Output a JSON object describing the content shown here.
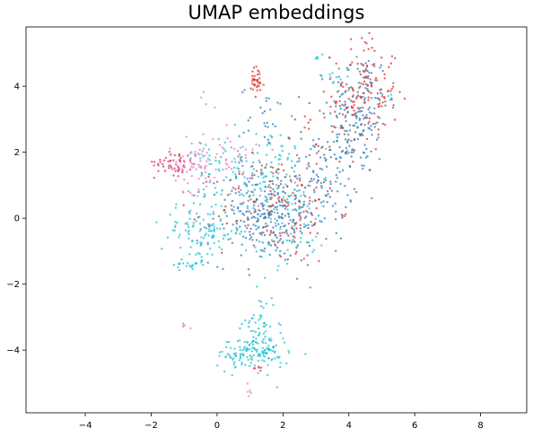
{
  "chart_data": {
    "type": "scatter",
    "title": "UMAP embeddings",
    "xlabel": "",
    "ylabel": "",
    "xlim": [
      -5.8,
      9.4
    ],
    "ylim": [
      -5.9,
      5.8
    ],
    "xticks": [
      -4,
      -2,
      0,
      2,
      4,
      6,
      8
    ],
    "yticks": [
      -4,
      -2,
      0,
      2,
      4
    ],
    "grid": false,
    "legend": "none",
    "point_alpha": 0.7,
    "colors": {
      "cyan": "#17becf",
      "blue": "#1f77b4",
      "red": "#d62728",
      "pink": "#e377c2",
      "crimson": "#e0245e",
      "brown": "#8c564b",
      "purple": "#9467bd"
    },
    "clusters": [
      {
        "color": "cyan",
        "cx": 3.0,
        "cy": 4.9,
        "sx": 0.15,
        "sy": 0.05,
        "n": 6
      },
      {
        "color": "cyan",
        "cx": 3.6,
        "cy": 4.2,
        "sx": 0.3,
        "sy": 0.2,
        "n": 12
      },
      {
        "color": "cyan",
        "cx": 5.2,
        "cy": 3.7,
        "sx": 0.1,
        "sy": 0.15,
        "n": 6
      },
      {
        "color": "blue",
        "cx": 4.3,
        "cy": 3.2,
        "sx": 0.45,
        "sy": 1.0,
        "n": 170
      },
      {
        "color": "red",
        "cx": 4.5,
        "cy": 3.8,
        "sx": 0.5,
        "sy": 0.9,
        "n": 140
      },
      {
        "color": "blue",
        "cx": 3.3,
        "cy": 1.4,
        "sx": 0.5,
        "sy": 0.7,
        "n": 90
      },
      {
        "color": "red",
        "cx": 3.0,
        "cy": 1.8,
        "sx": 0.5,
        "sy": 0.8,
        "n": 45
      },
      {
        "color": "red",
        "cx": 1.2,
        "cy": 4.1,
        "sx": 0.12,
        "sy": 0.25,
        "n": 35
      },
      {
        "color": "blue",
        "cx": 1.5,
        "cy": 3.0,
        "sx": 0.4,
        "sy": 0.5,
        "n": 30
      },
      {
        "color": "cyan",
        "cx": 1.5,
        "cy": 1.3,
        "sx": 0.6,
        "sy": 0.6,
        "n": 120
      },
      {
        "color": "blue",
        "cx": 1.6,
        "cy": 0.0,
        "sx": 0.9,
        "sy": 0.7,
        "n": 260
      },
      {
        "color": "red",
        "cx": 1.8,
        "cy": 0.2,
        "sx": 0.9,
        "sy": 0.8,
        "n": 110
      },
      {
        "color": "brown",
        "cx": 1.4,
        "cy": 0.6,
        "sx": 0.7,
        "sy": 0.7,
        "n": 30
      },
      {
        "color": "purple",
        "cx": 1.0,
        "cy": 1.0,
        "sx": 0.6,
        "sy": 0.5,
        "n": 15
      },
      {
        "color": "cyan",
        "cx": 2.2,
        "cy": -0.3,
        "sx": 0.6,
        "sy": 0.6,
        "n": 60
      },
      {
        "color": "crimson",
        "cx": -1.3,
        "cy": 1.7,
        "sx": 0.3,
        "sy": 0.2,
        "n": 50
      },
      {
        "color": "pink",
        "cx": -0.7,
        "cy": 1.6,
        "sx": 0.4,
        "sy": 0.4,
        "n": 60
      },
      {
        "color": "pink",
        "cx": 0.4,
        "cy": 1.9,
        "sx": 0.4,
        "sy": 0.4,
        "n": 35
      },
      {
        "color": "cyan",
        "cx": 0.0,
        "cy": 1.8,
        "sx": 0.5,
        "sy": 0.4,
        "n": 40
      },
      {
        "color": "pink",
        "cx": -0.2,
        "cy": 3.4,
        "sx": 0.2,
        "sy": 0.2,
        "n": 4
      },
      {
        "color": "cyan",
        "cx": -0.5,
        "cy": -0.4,
        "sx": 0.6,
        "sy": 0.45,
        "n": 110
      },
      {
        "color": "cyan",
        "cx": -0.8,
        "cy": -1.4,
        "sx": 0.25,
        "sy": 0.1,
        "n": 20
      },
      {
        "color": "cyan",
        "cx": 1.3,
        "cy": -3.4,
        "sx": 0.25,
        "sy": 0.6,
        "n": 70
      },
      {
        "color": "cyan",
        "cx": 1.1,
        "cy": -4.1,
        "sx": 0.55,
        "sy": 0.25,
        "n": 120
      },
      {
        "color": "red",
        "cx": 1.2,
        "cy": -4.5,
        "sx": 0.2,
        "sy": 0.05,
        "n": 6
      },
      {
        "color": "pink",
        "cx": -0.9,
        "cy": -3.3,
        "sx": 0.08,
        "sy": 0.08,
        "n": 5
      },
      {
        "color": "pink",
        "cx": 0.95,
        "cy": -5.3,
        "sx": 0.03,
        "sy": 0.12,
        "n": 5
      }
    ]
  }
}
